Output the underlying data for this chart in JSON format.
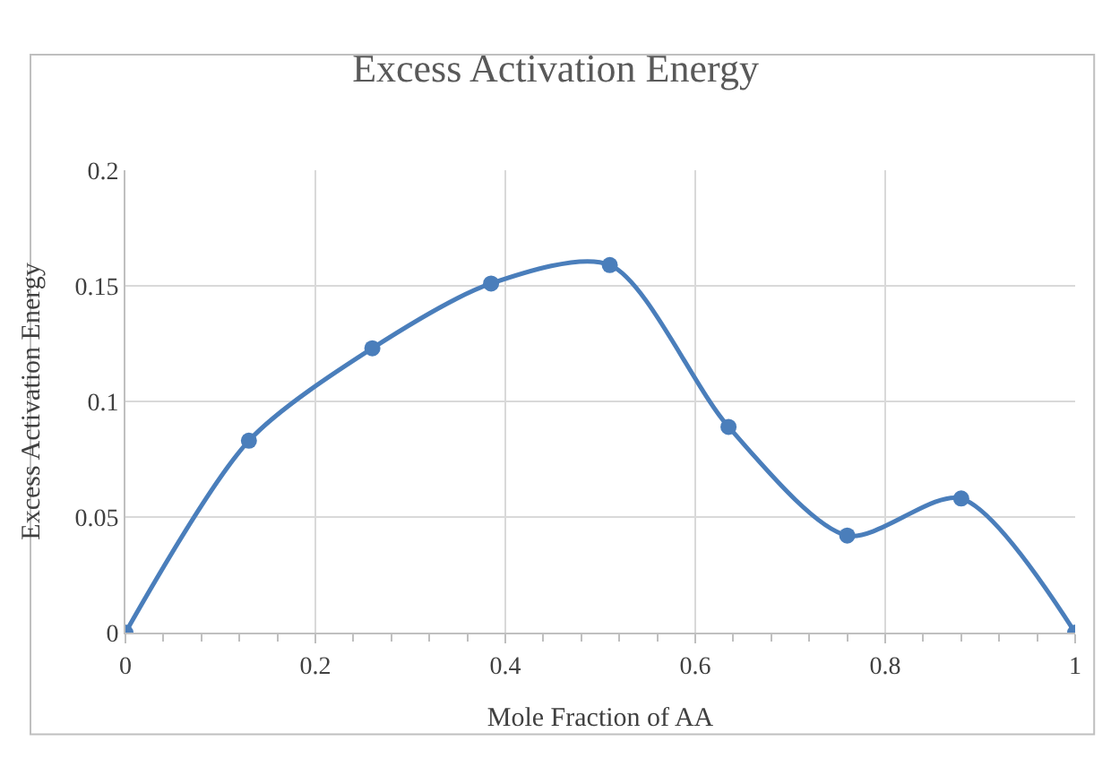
{
  "chart_data": {
    "type": "line",
    "title": "Excess Activation Energy",
    "xlabel": "Mole Fraction of AA",
    "ylabel": "Excess Activation Energy",
    "x": [
      0,
      0.13,
      0.26,
      0.385,
      0.51,
      0.635,
      0.76,
      0.88,
      1.0
    ],
    "series": [
      {
        "color": "#4a7ebb",
        "values": [
          0,
          0.083,
          0.123,
          0.151,
          0.159,
          0.089,
          0.042,
          0.058,
          0
        ]
      }
    ],
    "xlim": [
      0,
      1
    ],
    "xticks": [
      0,
      0.2,
      0.4,
      0.6,
      0.8,
      1
    ],
    "ylim": [
      0,
      0.2
    ],
    "yticks": [
      0,
      0.05,
      0.1,
      0.15,
      0.2
    ],
    "grid": true,
    "marker": "circle",
    "line_style": "solid"
  }
}
